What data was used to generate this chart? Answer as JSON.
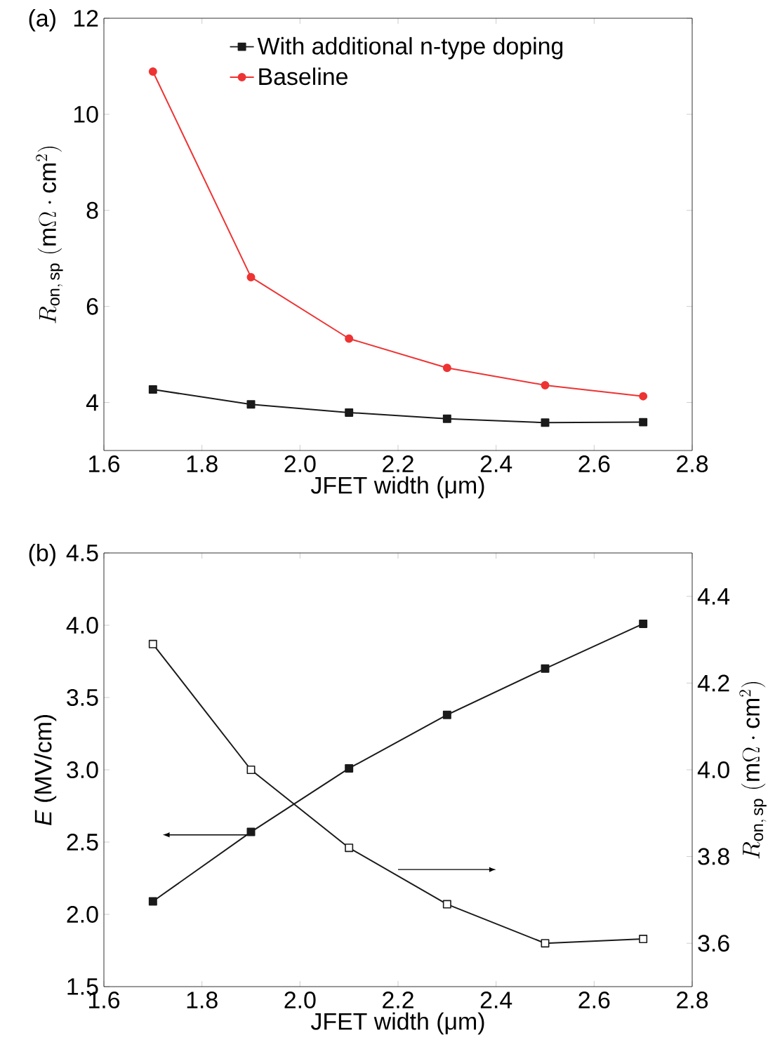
{
  "chart_data": [
    {
      "type": "line",
      "title": "(a)",
      "xlabel": "JFET width (μm)",
      "ylabel": "R_{\\mathrm{on,\\,sp}}\\ (\\mathrm{m}\\Omega\\cdot\\mathrm{cm}^{2})",
      "x": [
        1.7,
        1.9,
        2.1,
        2.3,
        2.5,
        2.7
      ],
      "series": [
        {
          "name": "With additional n-type doping",
          "color": "#1a1a1a",
          "marker": "square",
          "values": [
            4.27,
            3.96,
            3.79,
            3.66,
            3.58,
            3.59
          ]
        },
        {
          "name": "Baseline",
          "color": "#ee3333",
          "marker": "circle",
          "values": [
            10.89,
            6.61,
            5.33,
            4.72,
            4.36,
            4.13
          ]
        }
      ],
      "xlim": [
        1.6,
        2.8
      ],
      "xticks": [
        1.6,
        1.8,
        {
          "value": 2,
          "label": "2.0"
        },
        2.2,
        2.4,
        2.6,
        2.8
      ],
      "ylim": [
        3,
        12
      ],
      "yticks": [
        4,
        6,
        8,
        10,
        12
      ],
      "legend": "top",
      "grid": false
    },
    {
      "type": "line",
      "title": "(b)",
      "xlabel": "JFET width (μm)",
      "ylabel": "*E* (MV/cm)",
      "y2label": "R_{\\mathrm{on,\\,sp}}\\ (\\mathrm{m}\\Omega\\cdot\\mathrm{cm}^{2})",
      "x": [
        1.7,
        1.9,
        2.1,
        2.3,
        2.5,
        2.7
      ],
      "series": [
        {
          "color": "#1a1a1a",
          "marker": "square",
          "axis": "y",
          "values": [
            2.09,
            2.57,
            3.01,
            3.38,
            3.7,
            4.01
          ]
        },
        {
          "color": "#1a1a1a",
          "marker": "square",
          "axis": "y2",
          "values": [
            4.29,
            4.0,
            3.82,
            3.69,
            3.6,
            3.61
          ]
        }
      ],
      "xlim": [
        1.6,
        2.8
      ],
      "xticks": [
        1.6,
        1.8,
        {
          "value": 2,
          "label": "2.0"
        },
        2.2,
        2.4,
        2.6,
        2.8
      ],
      "ylim": [
        1.5,
        4.5
      ],
      "yticks": [
        1.5,
        {
          "value": 2,
          "label": "2.0"
        },
        2.5,
        {
          "value": 3,
          "label": "3.0"
        },
        3.5,
        {
          "value": 4,
          "label": "4.0"
        },
        4.5
      ],
      "y2lim": [
        3.5,
        4.5
      ],
      "y2ticks": [
        3.6,
        3.8,
        {
          "value": 4,
          "label": "4.0"
        },
        4.2,
        4.4
      ],
      "legend": false,
      "grid": false
    }
  ]
}
